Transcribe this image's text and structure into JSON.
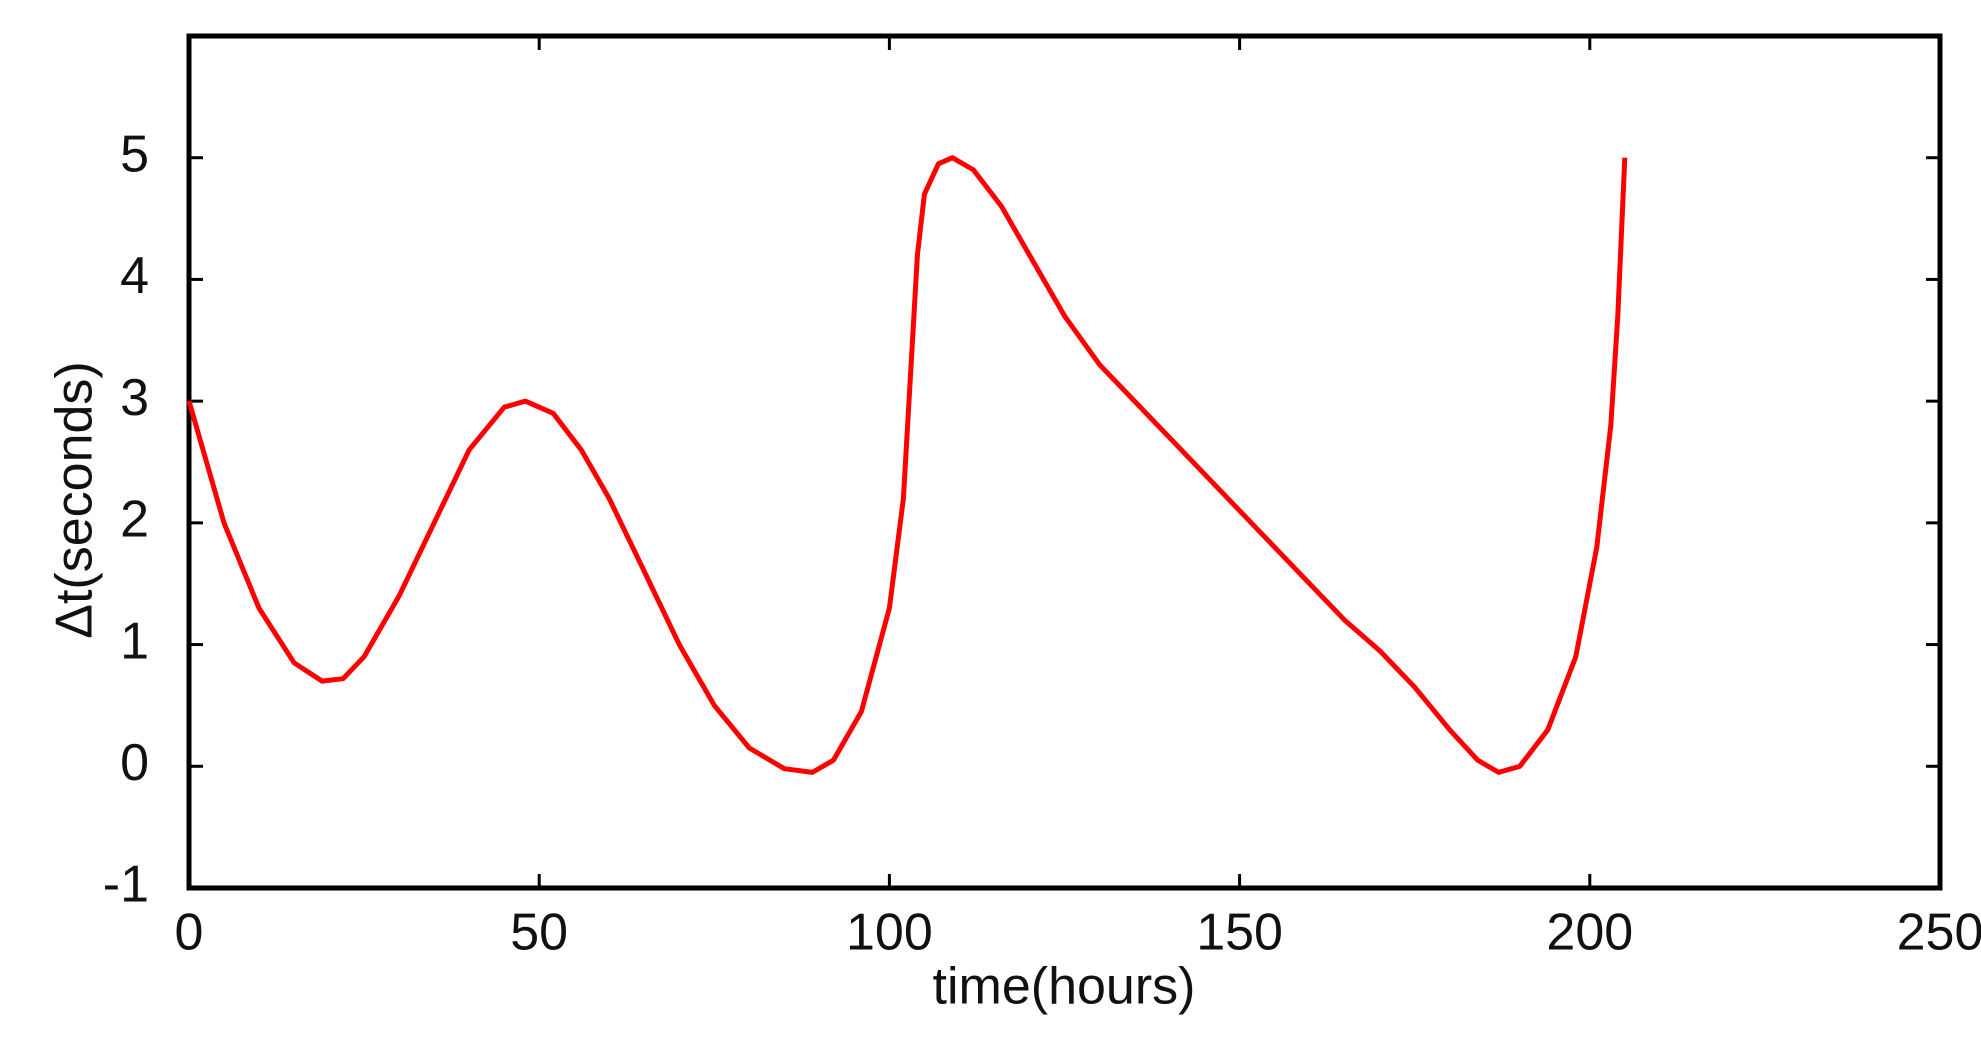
{
  "chart_data": {
    "type": "line",
    "x_label": "time(hours)",
    "y_label": "Δt(seconds)",
    "series": [
      {
        "color": "#ff0000",
        "x": [
          0,
          5,
          10,
          15,
          19,
          22,
          25,
          30,
          35,
          40,
          45,
          48,
          52,
          56,
          60,
          65,
          70,
          75,
          80,
          85,
          89,
          92,
          96,
          100,
          102,
          103,
          104,
          105,
          107,
          109,
          112,
          116,
          120,
          125,
          130,
          135,
          140,
          145,
          150,
          155,
          160,
          165,
          170,
          175,
          180,
          184,
          187,
          190,
          194,
          198,
          201,
          203,
          204,
          205
        ],
        "values": [
          3.0,
          2.0,
          1.3,
          0.85,
          0.7,
          0.72,
          0.9,
          1.4,
          2.0,
          2.6,
          2.95,
          3.0,
          2.9,
          2.6,
          2.2,
          1.6,
          1.0,
          0.5,
          0.15,
          -0.02,
          -0.05,
          0.05,
          0.45,
          1.3,
          2.2,
          3.2,
          4.2,
          4.7,
          4.95,
          5.0,
          4.9,
          4.6,
          4.2,
          3.7,
          3.3,
          3.0,
          2.7,
          2.4,
          2.1,
          1.8,
          1.5,
          1.2,
          0.95,
          0.65,
          0.3,
          0.05,
          -0.05,
          0.0,
          0.3,
          0.9,
          1.8,
          2.8,
          3.7,
          5.0
        ]
      }
    ],
    "xlim": [
      0,
      250
    ],
    "xticks": [
      0,
      50,
      100,
      150,
      200,
      250
    ],
    "ylim": [
      -1,
      6
    ],
    "yticks": [
      -1,
      0,
      1,
      2,
      3,
      4,
      5
    ],
    "grid": false
  }
}
